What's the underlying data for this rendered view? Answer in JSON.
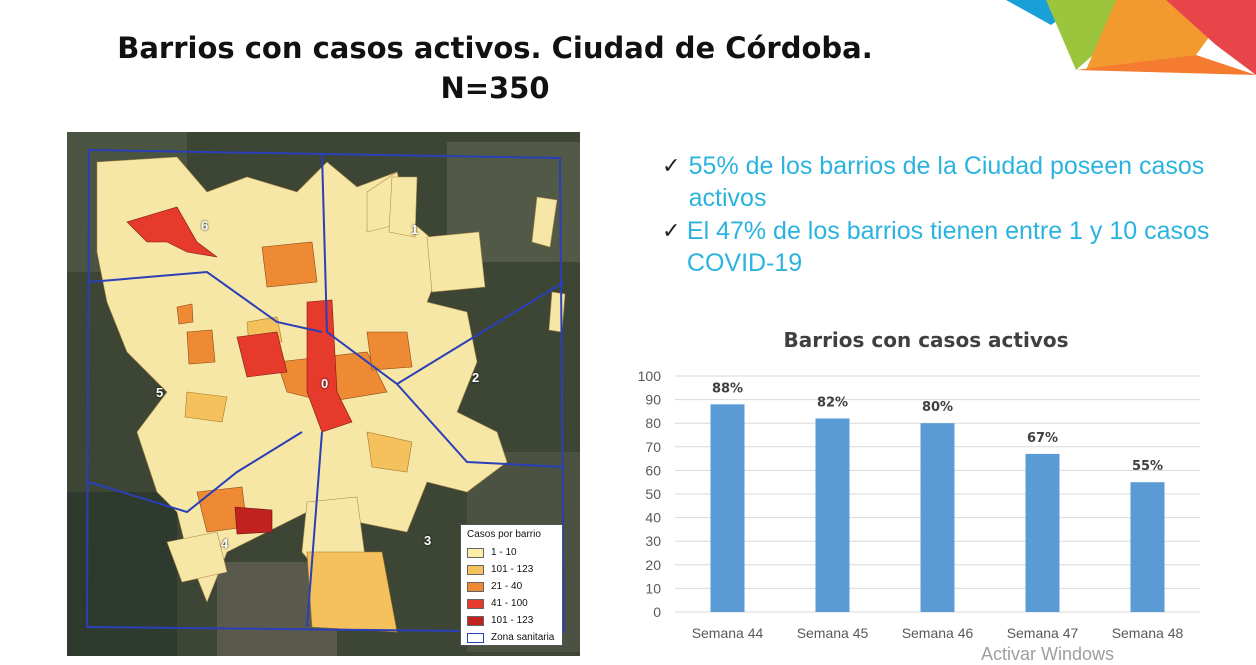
{
  "title": {
    "line1": "Barrios con casos activos. Ciudad de Córdoba.",
    "line2": "N=350"
  },
  "map": {
    "legend_title": "Casos por barrio",
    "legend_items": [
      {
        "label": "1 - 10",
        "color": "#fbeea8"
      },
      {
        "label": "101 - 123",
        "color": "#f5c15c"
      },
      {
        "label": "21 - 40",
        "color": "#ee8a33"
      },
      {
        "label": "41 - 100",
        "color": "#e53a2c"
      },
      {
        "label": "101 - 123",
        "color": "#c0231f"
      }
    ],
    "legend_zone_label": "Zona sanitaria",
    "zone_numbers": [
      "0",
      "1",
      "2",
      "3",
      "4",
      "5",
      "6"
    ]
  },
  "bullets": [
    "55% de los barrios de la Ciudad poseen casos activos",
    "El 47% de los barrios tienen entre 1 y 10 casos COVID-19"
  ],
  "check_mark": "✓",
  "chart_data": {
    "type": "bar",
    "title": "Barrios con casos activos",
    "categories": [
      "Semana 44",
      "Semana 45",
      "Semana 46",
      "Semana 47",
      "Semana 48"
    ],
    "values": [
      88,
      82,
      80,
      67,
      55
    ],
    "data_labels": [
      "88%",
      "82%",
      "80%",
      "67%",
      "55%"
    ],
    "ylim": [
      0,
      100
    ],
    "yticks": [
      0,
      10,
      20,
      30,
      40,
      50,
      60,
      70,
      80,
      90,
      100
    ],
    "grid": true,
    "bar_color": "#5b9bd5"
  },
  "watermark": "Activar Windows"
}
